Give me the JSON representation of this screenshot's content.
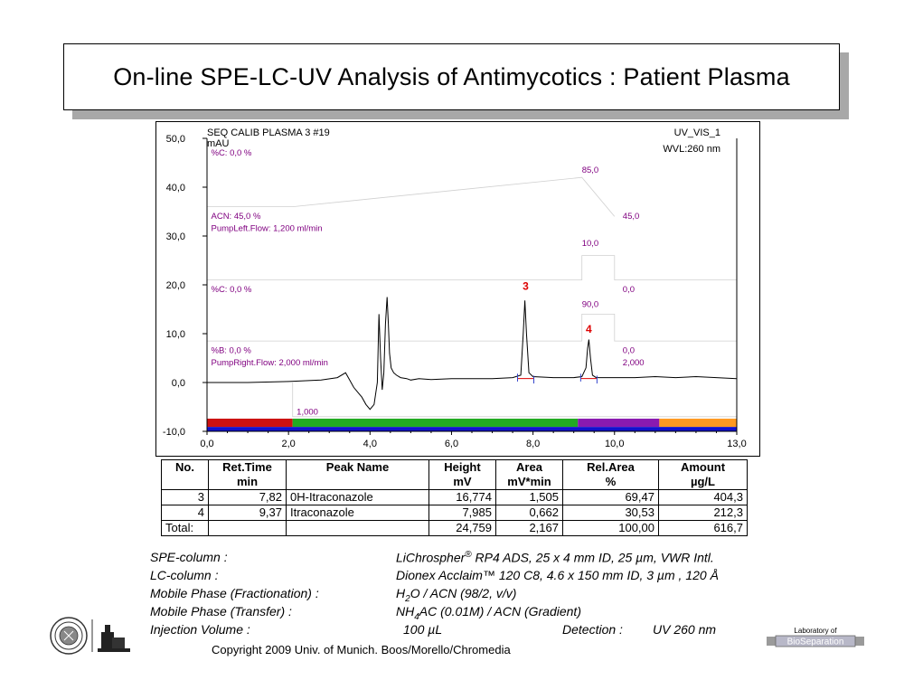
{
  "title": "On-line SPE-LC-UV Analysis of Antimycotics :  Patient Plasma",
  "chart_data": {
    "type": "line",
    "header_left": "SEQ CALIB PLASMA 3 #19",
    "header_right": "UV_VIS_1",
    "wavelength": "WVL:260 nm",
    "ylabel": "mAU",
    "xlim": [
      0,
      13
    ],
    "ylim": [
      -10,
      50
    ],
    "x_ticks": [
      "0,0",
      "2,0",
      "4,0",
      "6,0",
      "8,0",
      "10,0",
      "13,0"
    ],
    "x_tick_values": [
      0,
      2,
      4,
      6,
      8,
      10,
      13
    ],
    "y_ticks": [
      "-10,0",
      "0,0",
      "10,0",
      "20,0",
      "30,0",
      "40,0",
      "50,0"
    ],
    "y_tick_values": [
      -10,
      0,
      10,
      20,
      30,
      40,
      50
    ],
    "trace": {
      "x": [
        0.0,
        1.0,
        2.0,
        2.8,
        3.2,
        3.4,
        3.5,
        3.6,
        3.7,
        3.8,
        3.9,
        4.0,
        4.1,
        4.18,
        4.22,
        4.26,
        4.3,
        4.34,
        4.38,
        4.42,
        4.45,
        4.48,
        4.52,
        4.58,
        4.65,
        4.75,
        4.9,
        5.0,
        5.2,
        5.5,
        6.0,
        6.5,
        7.0,
        7.5,
        7.7,
        7.76,
        7.8,
        7.84,
        7.9,
        8.0,
        8.5,
        9.0,
        9.2,
        9.3,
        9.34,
        9.37,
        9.41,
        9.46,
        9.55,
        10.0,
        10.5,
        11.0,
        11.5,
        12.0,
        12.5,
        13.0
      ],
      "y": [
        0.0,
        0.0,
        0.2,
        0.5,
        1.0,
        2.0,
        0.5,
        -1.0,
        -2.0,
        -3.0,
        -4.5,
        -5.5,
        -4.5,
        0.0,
        14.0,
        5.0,
        -1.5,
        2.0,
        12.0,
        17.5,
        12.0,
        6.0,
        3.0,
        2.0,
        1.5,
        1.0,
        0.8,
        0.5,
        0.8,
        0.6,
        0.8,
        0.8,
        0.8,
        1.0,
        1.5,
        10.0,
        16.8,
        10.0,
        2.0,
        1.2,
        1.0,
        1.0,
        1.2,
        3.0,
        7.0,
        8.8,
        5.0,
        1.5,
        1.0,
        1.0,
        1.0,
        1.2,
        1.0,
        1.2,
        1.0,
        0.8
      ]
    },
    "peaks": [
      {
        "label": "3",
        "x": 7.82,
        "y": 16.774
      },
      {
        "label": "4",
        "x": 9.37,
        "y": 7.985
      }
    ],
    "method_annotations": [
      {
        "text": "%C: 0,0 %",
        "x": 0.1,
        "y": 46.5
      },
      {
        "text": "85,0",
        "x": 9.2,
        "y": 43.0
      },
      {
        "text": "ACN: 45,0 %",
        "x": 0.1,
        "y": 33.5
      },
      {
        "text": "45,0",
        "x": 10.2,
        "y": 33.5
      },
      {
        "text": "PumpLeft.Flow: 1,200 ml/min",
        "x": 0.1,
        "y": 31.0
      },
      {
        "text": "10,0",
        "x": 9.2,
        "y": 28.0
      },
      {
        "text": "%C: 0,0 %",
        "x": 0.1,
        "y": 18.5
      },
      {
        "text": "0,0",
        "x": 10.2,
        "y": 18.5
      },
      {
        "text": "90,0",
        "x": 9.2,
        "y": 15.5
      },
      {
        "text": "%B: 0,0 %",
        "x": 0.1,
        "y": 6.0
      },
      {
        "text": "0,0",
        "x": 10.2,
        "y": 6.0
      },
      {
        "text": "PumpRight.Flow: 2,000 ml/min",
        "x": 0.1,
        "y": 3.5
      },
      {
        "text": "2,000",
        "x": 10.2,
        "y": 3.5
      },
      {
        "text": "1,000",
        "x": 2.2,
        "y": -6.6
      }
    ],
    "program_lines": [
      {
        "x": [
          0.0,
          2.1,
          9.2,
          10.0
        ],
        "y": [
          36.0,
          36.0,
          42.0,
          34.0
        ]
      },
      {
        "x": [
          0.0,
          9.2,
          9.2,
          10.0,
          10.0,
          13.0
        ],
        "y": [
          21.0,
          21.0,
          26.0,
          26.0,
          21.0,
          21.0
        ]
      },
      {
        "x": [
          0.0,
          9.2,
          9.2,
          10.0,
          10.0,
          13.0
        ],
        "y": [
          8.5,
          8.5,
          14.0,
          14.0,
          8.5,
          8.5
        ]
      },
      {
        "x": [
          2.1,
          2.1,
          9.2,
          10.0,
          13.0
        ],
        "y": [
          0.0,
          -7.0,
          -7.0,
          -7.0,
          -7.0
        ]
      }
    ],
    "phase_bars": [
      {
        "x0": 0.0,
        "x1": 2.1,
        "color": "#cc1111"
      },
      {
        "x0": 2.1,
        "x1": 9.1,
        "color": "#22aa22"
      },
      {
        "x0": 9.1,
        "x1": 11.1,
        "color": "#8a1ab0"
      },
      {
        "x0": 11.1,
        "x1": 13.0,
        "color": "#ff9922"
      },
      {
        "x0": 0.0,
        "x1": 13.0,
        "color": "#1111cc",
        "lower": true
      }
    ],
    "colors": {
      "trace": "#000000",
      "annotation": "#800080",
      "peak_label": "#dd0000",
      "program_line": "#d0d0d0"
    }
  },
  "table": {
    "headers": [
      "No.",
      "Ret.Time",
      "Peak Name",
      "Height",
      "Area",
      "Rel.Area",
      "Amount"
    ],
    "units": [
      "",
      "min",
      "",
      "mV",
      "mV*min",
      "%",
      "µg/L"
    ],
    "rows": [
      [
        "3",
        "7,82",
        "0H-Itraconazole",
        "16,774",
        "1,505",
        "69,47",
        "404,3"
      ],
      [
        "4",
        "9,37",
        "Itraconazole",
        "7,985",
        "0,662",
        "30,53",
        "212,3"
      ]
    ],
    "total": [
      "Total:",
      "",
      "",
      "24,759",
      "2,167",
      "100,00",
      "616,7"
    ]
  },
  "info": {
    "spe_label": "SPE-column :",
    "spe_value": "LiChrospher",
    "spe_reg": "®",
    "spe_rest": " RP4 ADS,  25 x 4 mm ID, 25 µm, VWR Intl.",
    "lc_label": "LC-column :",
    "lc_value": "Dionex Acclaim™ 120  C8, 4.6 x 150 mm ID, 3 µm , 120 Å",
    "mp1_label": "Mobile Phase  (Fractionation) :",
    "mp1_a": "H",
    "mp1_sub": "2",
    "mp1_b": "O /  ACN (98/2, v/v)",
    "mp2_label": "Mobile Phase (Transfer) :",
    "mp2_a": "NH",
    "mp2_sub": "4",
    "mp2_b": "AC (0.01M) / ACN (Gradient)",
    "inj_label": "Injection Volume :",
    "inj_value": "100 µL",
    "det_label": "Detection :",
    "det_value": "UV 260 nm"
  },
  "copyright": "Copyright 2009 Univ. of Munich. Boos/Morello/Chromedia",
  "lab_logo": {
    "line1": "Laboratory of",
    "line2": "BioSeparation"
  }
}
